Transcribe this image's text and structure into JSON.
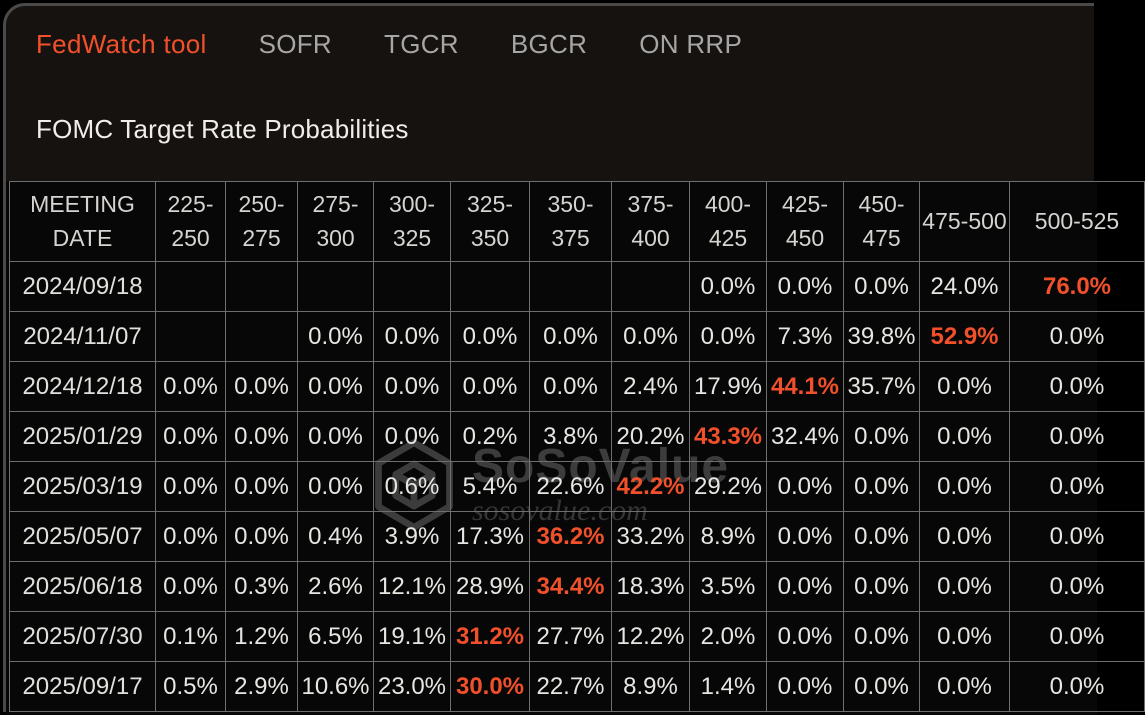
{
  "colors": {
    "accent": "#f1502b",
    "page_background": "#000000",
    "panel_background": "#15120f",
    "table_background": "#070707",
    "grid_border": "#6e6e6e",
    "panel_border": "#4a4a4a",
    "inactive_tab_text": "#a6a6a6",
    "cell_text": "#e8e6e2",
    "watermark_text": "#3f3f3f"
  },
  "tabs": [
    {
      "label": "FedWatch tool",
      "active": true
    },
    {
      "label": "SOFR",
      "active": false
    },
    {
      "label": "TGCR",
      "active": false
    },
    {
      "label": "BGCR",
      "active": false
    },
    {
      "label": "ON RRP",
      "active": false
    }
  ],
  "title": "FOMC Target Rate Probabilities",
  "watermark": {
    "icon": "sosovalue-cube-icon",
    "name": "SoSoValue",
    "domain": "sosovalue.com"
  },
  "table": {
    "columns": [
      "MEETING DATE",
      "225-250",
      "250-275",
      "275-300",
      "300-325",
      "325-350",
      "350-375",
      "375-400",
      "400-425",
      "425-450",
      "450-475",
      "475-500",
      "500-525"
    ],
    "rows": [
      {
        "date": "2024/09/18",
        "values": [
          "",
          "",
          "",
          "",
          "",
          "",
          "",
          "0.0%",
          "0.0%",
          "0.0%",
          "24.0%",
          "76.0%"
        ],
        "highlight_index": 11
      },
      {
        "date": "2024/11/07",
        "values": [
          "",
          "",
          "0.0%",
          "0.0%",
          "0.0%",
          "0.0%",
          "0.0%",
          "0.0%",
          "7.3%",
          "39.8%",
          "52.9%",
          "0.0%"
        ],
        "highlight_index": 10
      },
      {
        "date": "2024/12/18",
        "values": [
          "0.0%",
          "0.0%",
          "0.0%",
          "0.0%",
          "0.0%",
          "0.0%",
          "2.4%",
          "17.9%",
          "44.1%",
          "35.7%",
          "0.0%",
          "0.0%"
        ],
        "highlight_index": 8
      },
      {
        "date": "2025/01/29",
        "values": [
          "0.0%",
          "0.0%",
          "0.0%",
          "0.0%",
          "0.2%",
          "3.8%",
          "20.2%",
          "43.3%",
          "32.4%",
          "0.0%",
          "0.0%",
          "0.0%"
        ],
        "highlight_index": 7
      },
      {
        "date": "2025/03/19",
        "values": [
          "0.0%",
          "0.0%",
          "0.0%",
          "0.6%",
          "5.4%",
          "22.6%",
          "42.2%",
          "29.2%",
          "0.0%",
          "0.0%",
          "0.0%",
          "0.0%"
        ],
        "highlight_index": 6
      },
      {
        "date": "2025/05/07",
        "values": [
          "0.0%",
          "0.0%",
          "0.4%",
          "3.9%",
          "17.3%",
          "36.2%",
          "33.2%",
          "8.9%",
          "0.0%",
          "0.0%",
          "0.0%",
          "0.0%"
        ],
        "highlight_index": 5
      },
      {
        "date": "2025/06/18",
        "values": [
          "0.0%",
          "0.3%",
          "2.6%",
          "12.1%",
          "28.9%",
          "34.4%",
          "18.3%",
          "3.5%",
          "0.0%",
          "0.0%",
          "0.0%",
          "0.0%"
        ],
        "highlight_index": 5
      },
      {
        "date": "2025/07/30",
        "values": [
          "0.1%",
          "1.2%",
          "6.5%",
          "19.1%",
          "31.2%",
          "27.7%",
          "12.2%",
          "2.0%",
          "0.0%",
          "0.0%",
          "0.0%",
          "0.0%"
        ],
        "highlight_index": 4
      },
      {
        "date": "2025/09/17",
        "values": [
          "0.5%",
          "2.9%",
          "10.6%",
          "23.0%",
          "30.0%",
          "22.7%",
          "8.9%",
          "1.4%",
          "0.0%",
          "0.0%",
          "0.0%",
          "0.0%"
        ],
        "highlight_index": 4
      }
    ]
  }
}
